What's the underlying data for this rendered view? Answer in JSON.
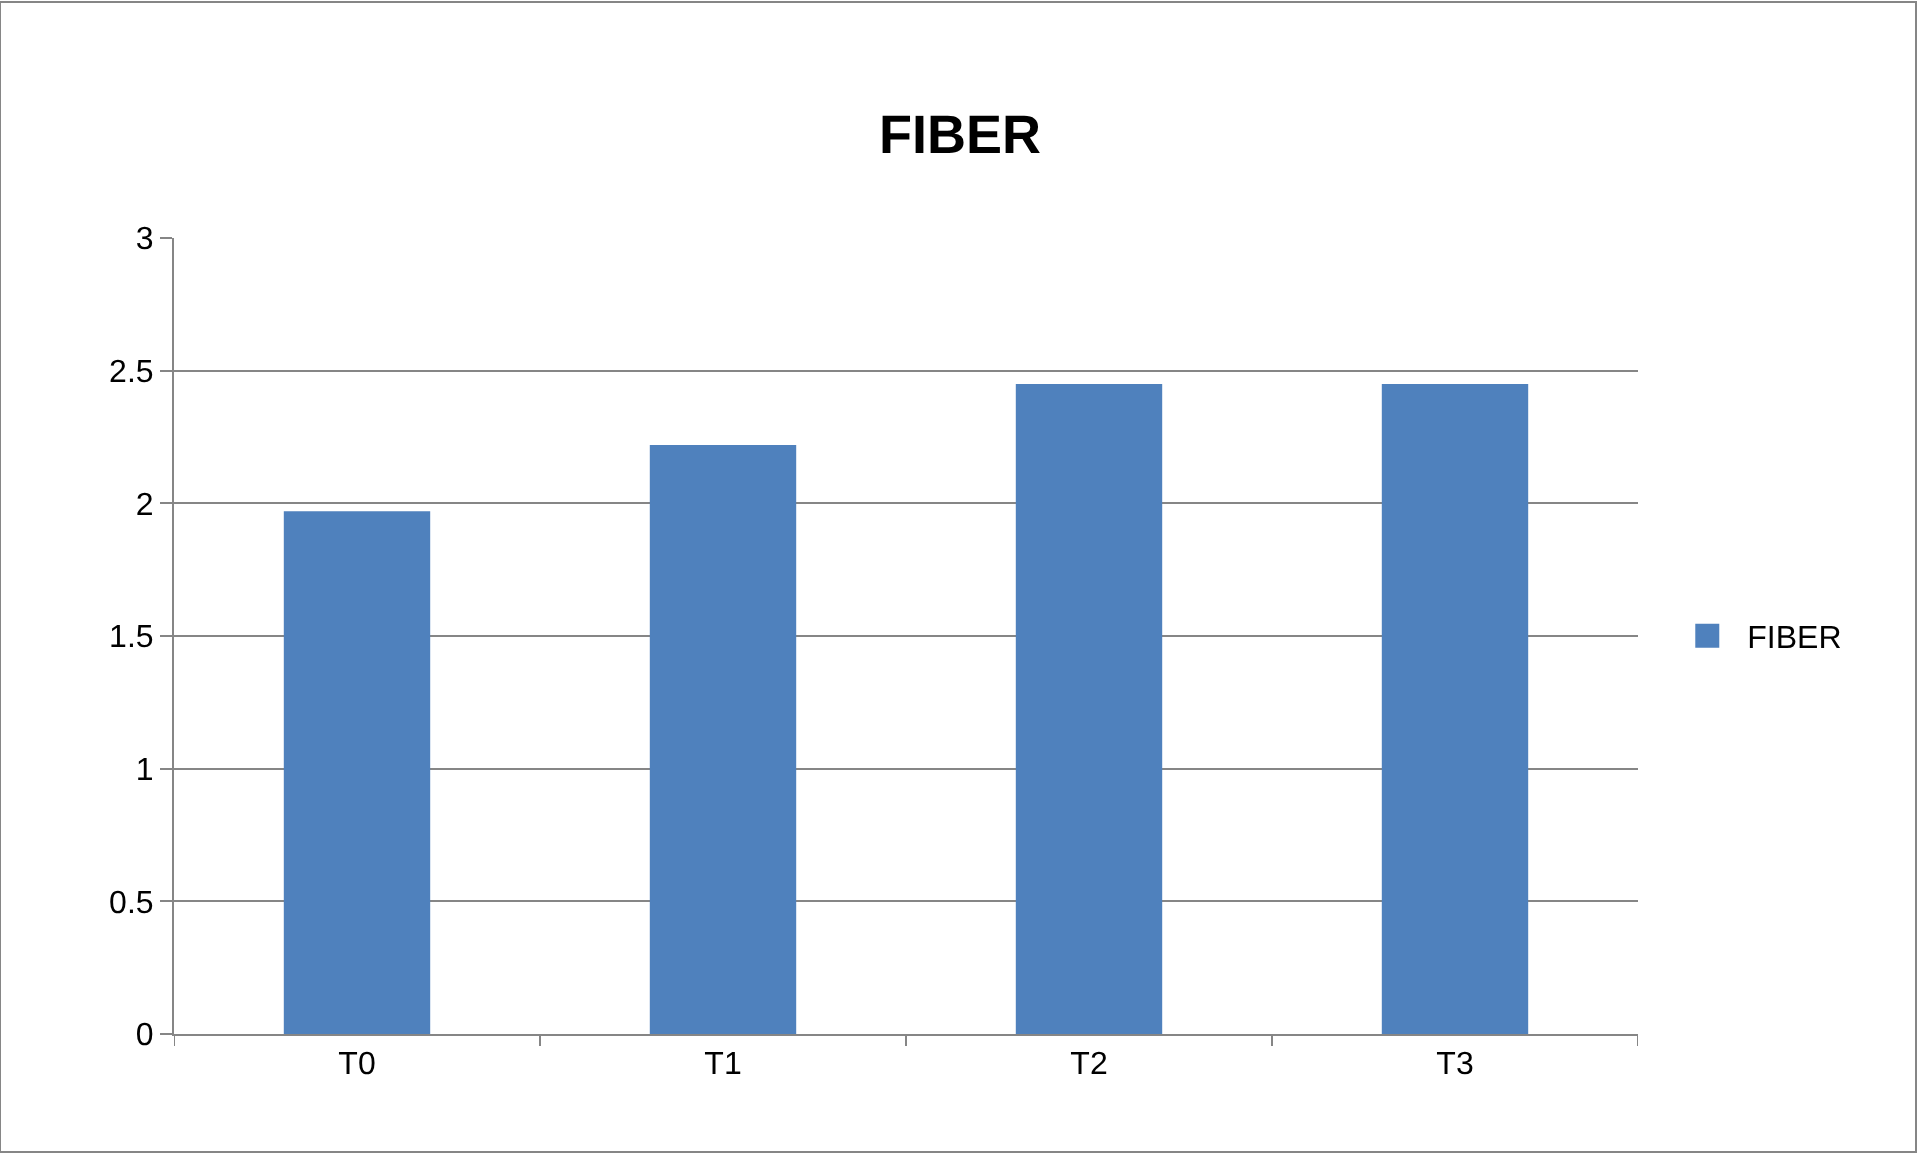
{
  "chart_data": {
    "type": "bar",
    "title": "FIBER",
    "categories": [
      "T0",
      "T1",
      "T2",
      "T3"
    ],
    "series": [
      {
        "name": "FIBER",
        "color": "#4f81bd",
        "values": [
          1.97,
          2.22,
          2.45,
          2.45
        ]
      }
    ],
    "ylim": [
      0,
      3
    ],
    "yticks": [
      0,
      0.5,
      1,
      1.5,
      2,
      2.5,
      3
    ],
    "grid": "y",
    "legend": "right"
  }
}
